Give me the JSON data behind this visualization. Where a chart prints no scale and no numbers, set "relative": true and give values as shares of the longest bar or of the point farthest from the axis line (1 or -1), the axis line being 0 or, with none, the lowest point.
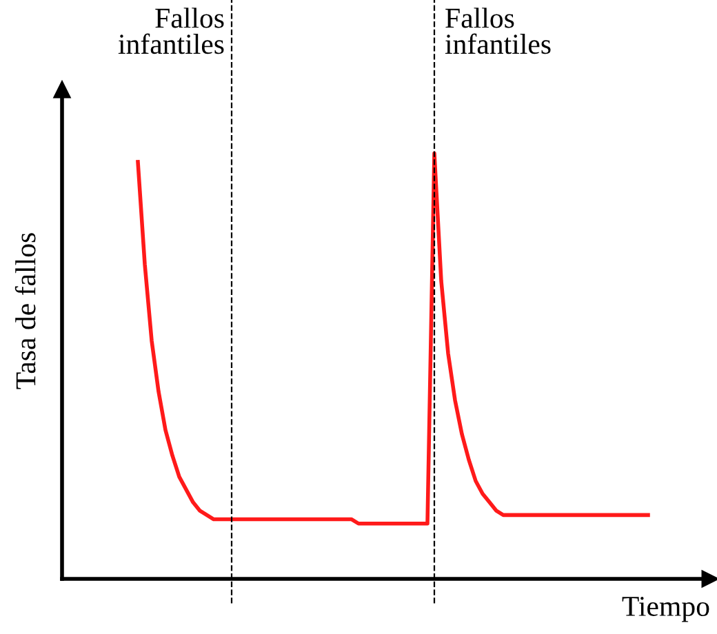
{
  "chart_data": {
    "type": "line",
    "relative": true,
    "xlabel": "Tiempo",
    "ylabel": "Tasa de fallos",
    "categories": [
      null,
      null,
      null,
      null,
      null,
      null,
      null,
      null,
      null,
      null,
      null,
      null,
      null,
      null,
      null,
      null,
      null,
      null,
      null,
      null,
      null,
      null,
      null,
      null,
      null,
      null,
      null,
      null,
      null,
      null,
      null,
      null,
      null,
      null,
      null,
      null,
      null,
      null,
      null,
      null,
      null,
      null,
      null,
      null,
      null,
      null,
      null,
      null,
      null,
      null,
      null,
      null,
      null,
      null,
      null,
      null,
      null,
      null,
      null,
      null,
      null,
      null,
      null,
      null,
      null,
      null,
      null,
      null,
      null,
      null,
      null,
      null,
      null,
      null,
      null
    ],
    "series": [
      {
        "color": "#ff1a1a",
        "values": [
          0.98,
          0.74,
          0.56,
          0.44,
          0.35,
          0.29,
          0.24,
          0.21,
          0.18,
          0.16,
          0.15,
          0.14,
          0.14,
          0.14,
          0.14,
          0.14,
          0.14,
          0.14,
          0.14,
          0.14,
          0.14,
          0.14,
          0.14,
          0.14,
          0.14,
          0.14,
          0.14,
          0.14,
          0.14,
          0.14,
          0.14,
          0.14,
          0.13,
          0.13,
          0.13,
          0.13,
          0.13,
          0.13,
          0.13,
          0.13,
          0.13,
          0.13,
          0.13,
          1.0,
          0.7,
          0.53,
          0.42,
          0.34,
          0.28,
          0.23,
          0.2,
          0.18,
          0.16,
          0.15,
          0.15,
          0.15,
          0.15,
          0.15,
          0.15,
          0.15,
          0.15,
          0.15,
          0.15,
          0.15,
          0.15,
          0.15,
          0.15,
          0.15,
          0.15,
          0.15,
          0.15,
          0.15,
          0.15,
          0.15,
          0.15
        ]
      }
    ],
    "annotations": [
      "Fallos\ninfantiles",
      "Fallos\ninfantiles"
    ],
    "legend": false,
    "marker": "none",
    "line_style": "solid"
  }
}
